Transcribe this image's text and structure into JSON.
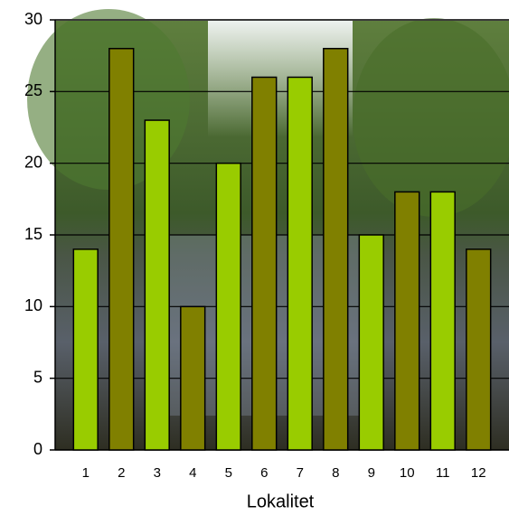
{
  "chart_data": {
    "type": "bar",
    "x_label": "Lokalitet",
    "categories": [
      "1",
      "2",
      "3",
      "4",
      "5",
      "6",
      "7",
      "8",
      "9",
      "10",
      "11",
      "12"
    ],
    "values": [
      14,
      28,
      23,
      10,
      20,
      26,
      26,
      28,
      15,
      18,
      18,
      14
    ],
    "colors": [
      "#99cc00",
      "#808000",
      "#99cc00",
      "#808000",
      "#99cc00",
      "#808000",
      "#99cc00",
      "#808000",
      "#99cc00",
      "#808000",
      "#99cc00",
      "#808000"
    ],
    "ylim": [
      0,
      30
    ],
    "yticks": [
      0,
      5,
      10,
      15,
      20,
      25,
      30
    ],
    "grid": true
  }
}
